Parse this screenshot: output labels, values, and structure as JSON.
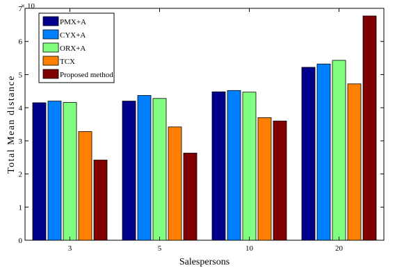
{
  "chart_data": {
    "type": "bar",
    "categories": [
      "3",
      "5",
      "10",
      "20"
    ],
    "series": [
      {
        "name": "PMX+A",
        "color": "#00008b",
        "values": [
          4.15,
          4.2,
          4.48,
          5.22
        ]
      },
      {
        "name": "CYX+A",
        "color": "#0080ff",
        "values": [
          4.2,
          4.37,
          4.52,
          5.32
        ]
      },
      {
        "name": "ORX+A",
        "color": "#80ff80",
        "values": [
          4.16,
          4.28,
          4.47,
          5.43
        ]
      },
      {
        "name": "TCX",
        "color": "#ff8000",
        "values": [
          3.28,
          3.42,
          3.7,
          4.72
        ]
      },
      {
        "name": "Proposed method",
        "color": "#800000",
        "values": [
          2.42,
          2.63,
          3.6,
          6.77
        ]
      }
    ],
    "title": "",
    "xlabel": "Salespersons",
    "ylabel": "Total Mean distance",
    "ylim": [
      0,
      7
    ],
    "yticks": [
      "0",
      "1",
      "2",
      "3",
      "4",
      "5",
      "6",
      "7"
    ],
    "y_exponent": "× 10",
    "legend_position": "top-left",
    "grid": false
  }
}
